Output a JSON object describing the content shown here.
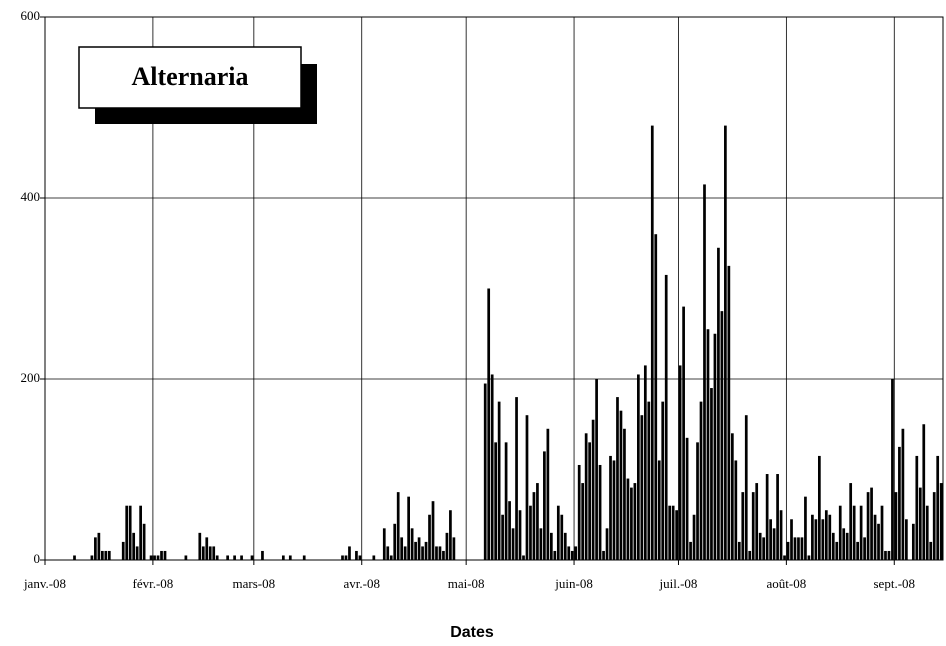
{
  "chart_data": {
    "type": "bar",
    "title": "Alternaria",
    "x_label": "Dates",
    "categories": [
      "janv.-08",
      null,
      null,
      null,
      null,
      null,
      null,
      null,
      null,
      null,
      null,
      null,
      null,
      null,
      null,
      null,
      null,
      null,
      null,
      null,
      null,
      null,
      null,
      null,
      null,
      null,
      null,
      null,
      null,
      null,
      null,
      "févr.-08",
      null,
      null,
      null,
      null,
      null,
      null,
      null,
      null,
      null,
      null,
      null,
      null,
      null,
      null,
      null,
      null,
      null,
      null,
      null,
      null,
      null,
      null,
      null,
      null,
      null,
      null,
      null,
      null,
      "mars-08",
      null,
      null,
      null,
      null,
      null,
      null,
      null,
      null,
      null,
      null,
      null,
      null,
      null,
      null,
      null,
      null,
      null,
      null,
      null,
      null,
      null,
      null,
      null,
      null,
      null,
      null,
      null,
      null,
      null,
      null,
      "avr.-08",
      null,
      null,
      null,
      null,
      null,
      null,
      null,
      null,
      null,
      null,
      null,
      null,
      null,
      null,
      null,
      null,
      null,
      null,
      null,
      null,
      null,
      null,
      null,
      null,
      null,
      null,
      null,
      null,
      null,
      "mai-08",
      null,
      null,
      null,
      null,
      null,
      null,
      null,
      null,
      null,
      null,
      null,
      null,
      null,
      null,
      null,
      null,
      null,
      null,
      null,
      null,
      null,
      null,
      null,
      null,
      null,
      null,
      null,
      null,
      null,
      null,
      "juin-08",
      null,
      null,
      null,
      null,
      null,
      null,
      null,
      null,
      null,
      null,
      null,
      null,
      null,
      null,
      null,
      null,
      null,
      null,
      null,
      null,
      null,
      null,
      null,
      null,
      null,
      null,
      null,
      null,
      null,
      "juil.-08",
      null,
      null,
      null,
      null,
      null,
      null,
      null,
      null,
      null,
      null,
      null,
      null,
      null,
      null,
      null,
      null,
      null,
      null,
      null,
      null,
      null,
      null,
      null,
      null,
      null,
      null,
      null,
      null,
      null,
      null,
      "août-08",
      null,
      null,
      null,
      null,
      null,
      null,
      null,
      null,
      null,
      null,
      null,
      null,
      null,
      null,
      null,
      null,
      null,
      null,
      null,
      null,
      null,
      null,
      null,
      null,
      null,
      null,
      null,
      null,
      null,
      null,
      "sept.-08",
      null,
      null,
      null,
      null,
      null,
      null,
      null,
      null,
      null,
      null,
      null,
      null,
      null
    ],
    "values": [
      0,
      0,
      0,
      0,
      0,
      0,
      0,
      0,
      5,
      0,
      0,
      0,
      0,
      5,
      25,
      30,
      10,
      10,
      10,
      0,
      0,
      0,
      20,
      60,
      60,
      30,
      15,
      60,
      40,
      0,
      5,
      5,
      5,
      10,
      10,
      0,
      0,
      0,
      0,
      0,
      5,
      0,
      0,
      0,
      30,
      15,
      25,
      15,
      15,
      5,
      0,
      0,
      5,
      0,
      5,
      0,
      5,
      0,
      0,
      5,
      0,
      0,
      10,
      0,
      0,
      0,
      0,
      0,
      5,
      0,
      5,
      0,
      0,
      0,
      5,
      0,
      0,
      0,
      0,
      0,
      0,
      0,
      0,
      0,
      0,
      5,
      5,
      15,
      0,
      10,
      5,
      0,
      0,
      0,
      5,
      0,
      0,
      35,
      15,
      5,
      40,
      75,
      25,
      15,
      70,
      35,
      20,
      25,
      15,
      20,
      50,
      65,
      15,
      15,
      10,
      30,
      55,
      25,
      0,
      0,
      0,
      0,
      0,
      0,
      0,
      0,
      195,
      300,
      205,
      130,
      175,
      50,
      130,
      65,
      35,
      180,
      55,
      5,
      160,
      60,
      75,
      85,
      35,
      120,
      145,
      30,
      10,
      60,
      50,
      30,
      15,
      10,
      15,
      105,
      85,
      140,
      130,
      155,
      200,
      105,
      10,
      35,
      115,
      110,
      180,
      165,
      145,
      90,
      80,
      85,
      205,
      160,
      215,
      175,
      480,
      360,
      110,
      175,
      315,
      60,
      60,
      55,
      215,
      280,
      135,
      20,
      50,
      130,
      175,
      415,
      255,
      190,
      250,
      345,
      275,
      480,
      325,
      140,
      110,
      20,
      75,
      160,
      10,
      75,
      85,
      30,
      25,
      95,
      45,
      35,
      95,
      55,
      5,
      20,
      45,
      25,
      25,
      25,
      70,
      5,
      50,
      45,
      115,
      45,
      55,
      50,
      30,
      20,
      60,
      35,
      30,
      85,
      60,
      20,
      60,
      25,
      75,
      80,
      50,
      40,
      60,
      10,
      10,
      200,
      75,
      125,
      145,
      45,
      0,
      40,
      115,
      80,
      150,
      60,
      20,
      75,
      115,
      85
    ],
    "color": "#000000",
    "ylim": [
      0,
      600
    ],
    "yticks": [
      0,
      200,
      400,
      600
    ],
    "grid": true
  }
}
